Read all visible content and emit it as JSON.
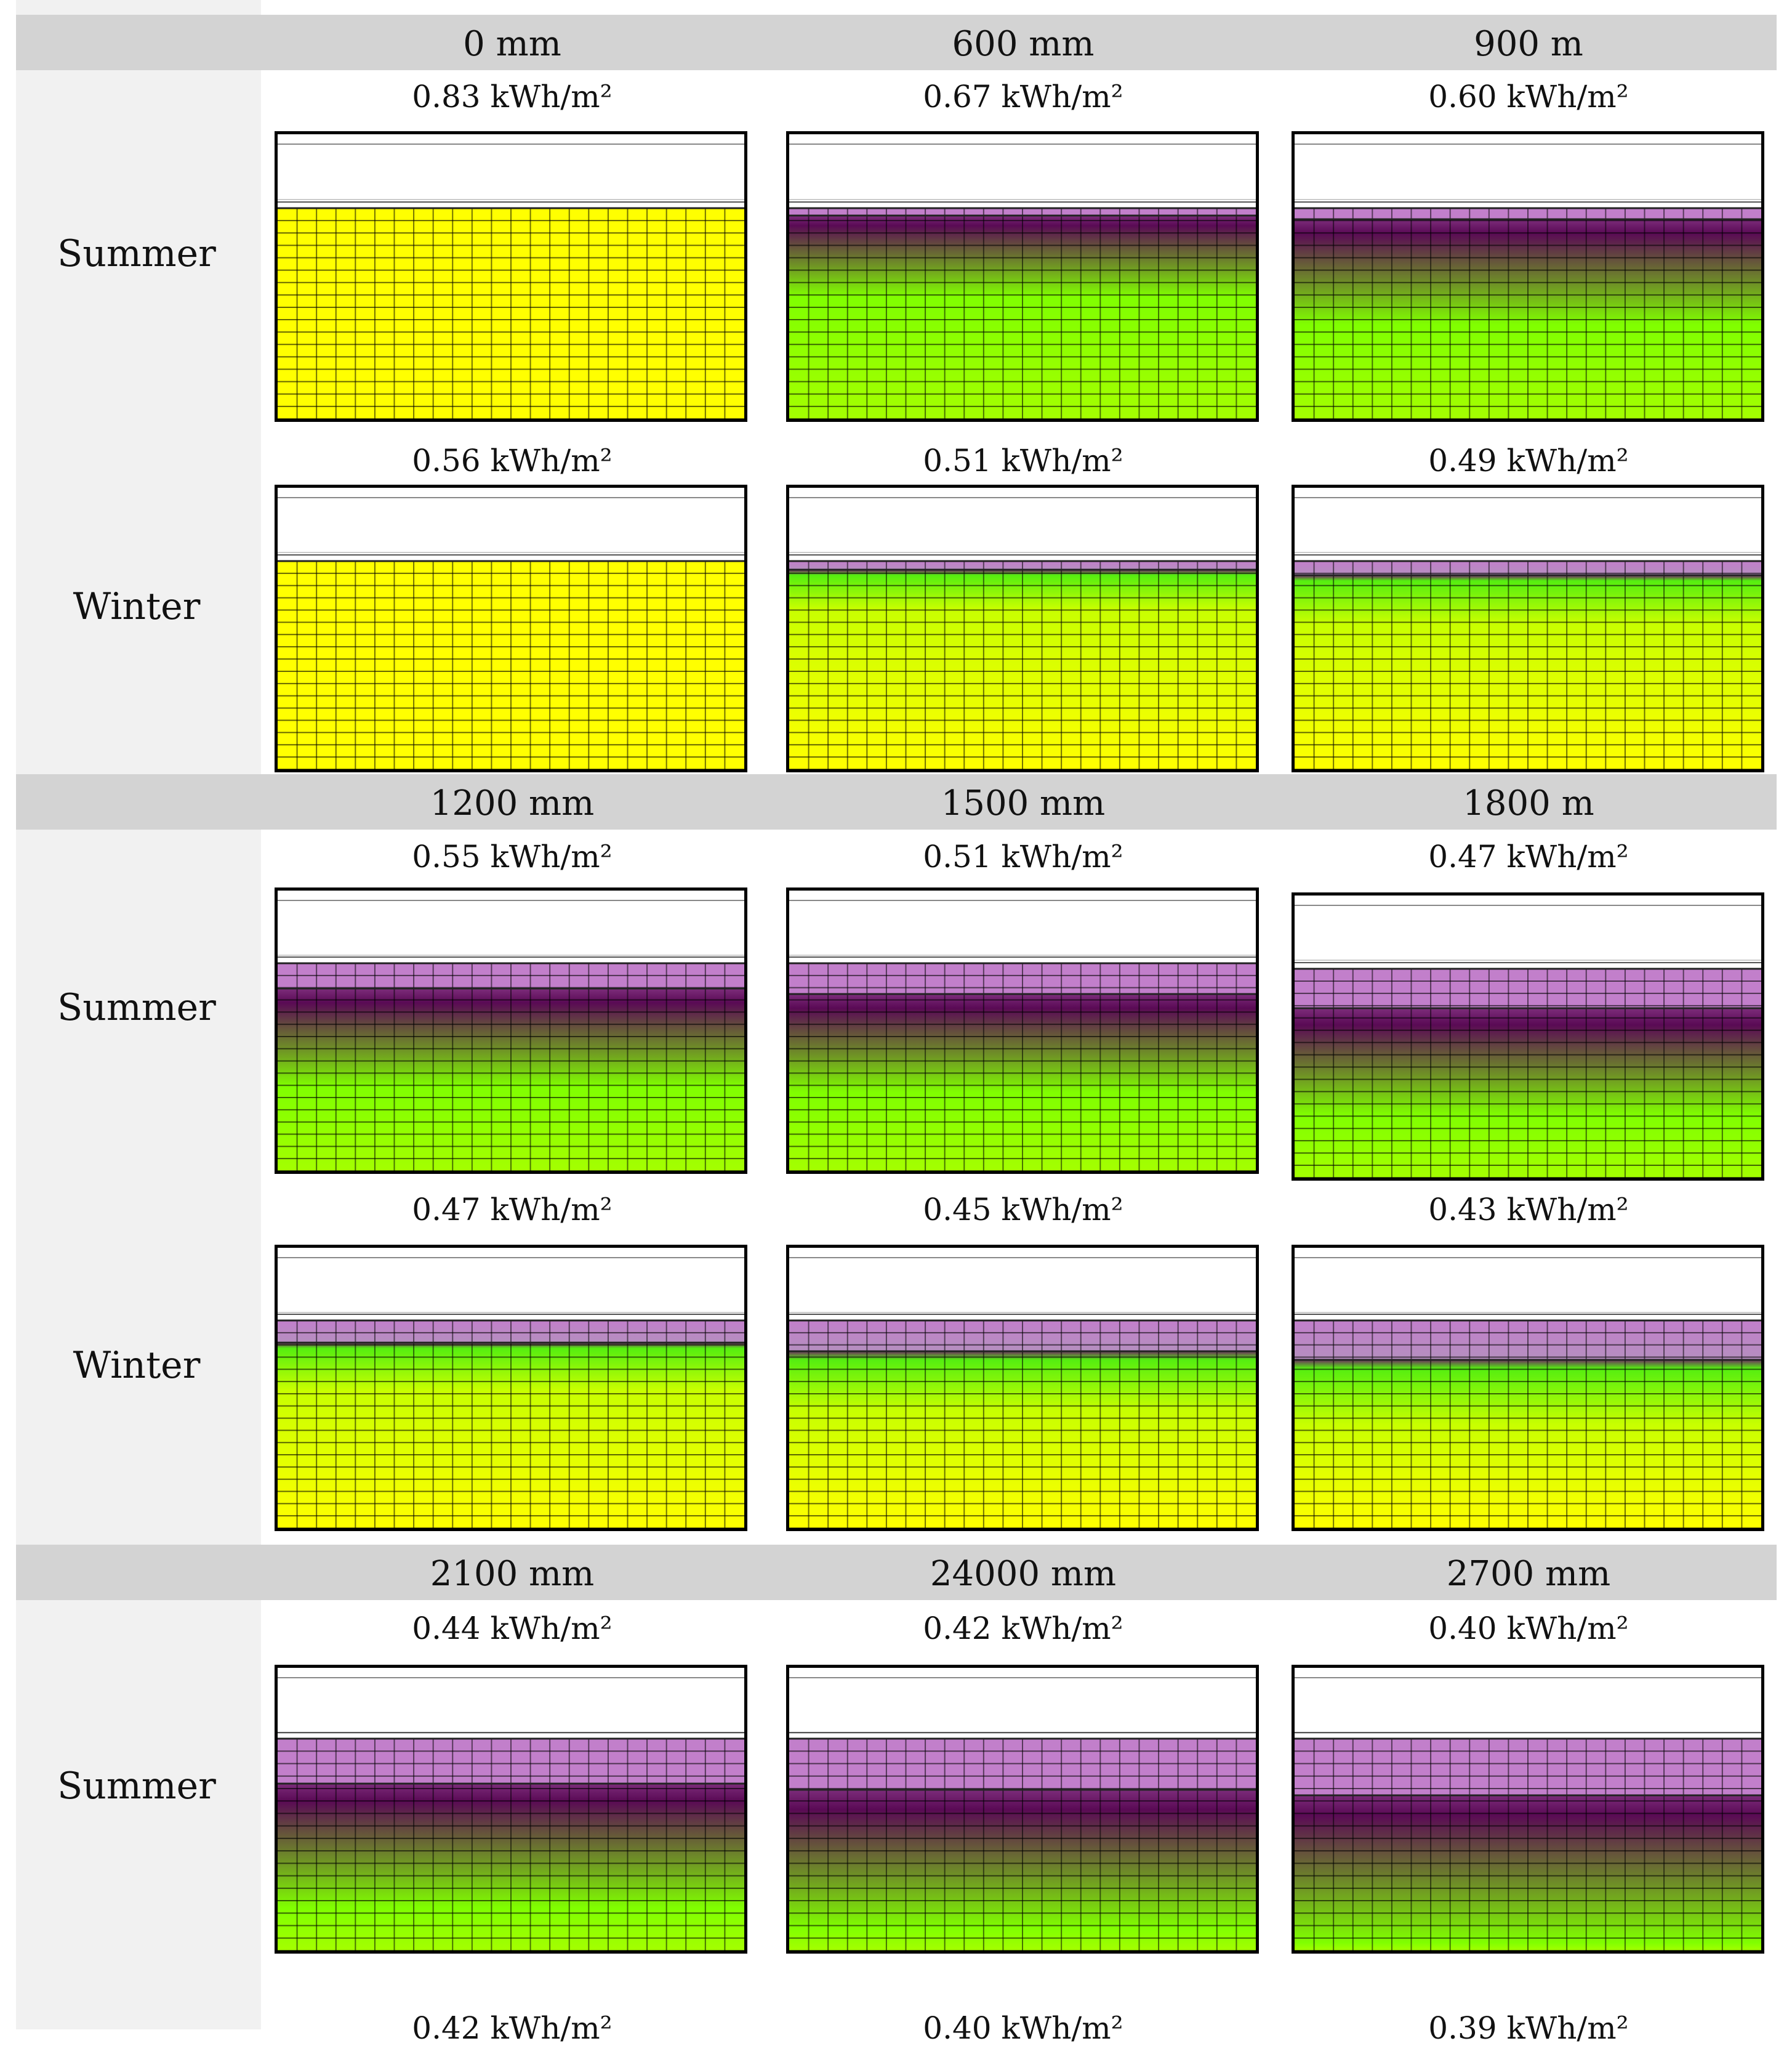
{
  "groups": [
    {
      "columns": [
        "0 mm",
        "600 mm",
        "900 m"
      ],
      "rows": [
        {
          "label": "Summer",
          "values": [
            "0.83 kWh/m²",
            "0.67 kWh/m²",
            "0.60 kWh/m²"
          ]
        },
        {
          "label": "Winter",
          "values": [
            "0.56 kWh/m²",
            "0.51 kWh/m²",
            "0.49 kWh/m²"
          ]
        }
      ]
    },
    {
      "columns": [
        "1200 mm",
        "1500 mm",
        "1800 m"
      ],
      "rows": [
        {
          "label": "Summer",
          "values": [
            "0.55 kWh/m²",
            "0.51 kWh/m²",
            "0.47 kWh/m²"
          ]
        },
        {
          "label": "Winter",
          "values": [
            "0.47 kWh/m²",
            "0.45 kWh/m²",
            "0.43 kWh/m²"
          ]
        }
      ]
    },
    {
      "columns": [
        "2100 mm",
        "24000 mm",
        "2700 mm"
      ],
      "rows": [
        {
          "label": "Summer",
          "values": [
            "0.44 kWh/m²",
            "0.42 kWh/m²",
            "0.40 kWh/m²"
          ]
        }
      ],
      "bottom_values": [
        "0.42 kWh/m²",
        "0.40 kWh/m²",
        "0.39 kWh/m²"
      ]
    }
  ],
  "colors": {
    "header_bar": "#d3d3d3",
    "side_column": "#f1f1f1",
    "yellow": "#ffff00",
    "green": "#80ff00",
    "purple_band": "#c27fcb",
    "dark_purple": "#5a0a55"
  }
}
